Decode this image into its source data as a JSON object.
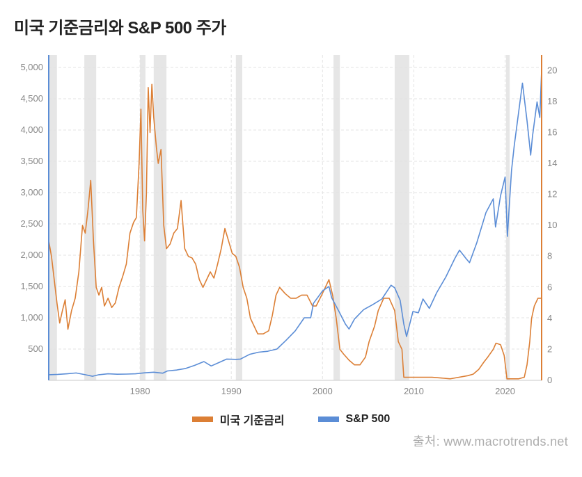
{
  "title": "미국 기준금리와 S&P 500 주가",
  "legend": {
    "series_a": {
      "label": "미국 기준금리",
      "color": "#dc7f35"
    },
    "series_b": {
      "label": "S&P 500",
      "color": "#5b8dd6"
    }
  },
  "source": "출처: www.macrotrends.net",
  "chart": {
    "type": "dual-axis-line",
    "background_color": "#ffffff",
    "plot_border_color": "#5b8dd6",
    "plot_border_right_color": "#dc7f35",
    "grid_color": "#e3e3e3",
    "grid_dash": "4 3",
    "band_color": "#e6e6e6",
    "line_width": 1.6,
    "x": {
      "min": 1970,
      "max": 2024,
      "ticks": [
        1980,
        1990,
        2000,
        2010,
        2020
      ],
      "fontsize": 13,
      "color": "#888888"
    },
    "y_left": {
      "min": 0,
      "max": 5200,
      "ticks": [
        500,
        1000,
        1500,
        2000,
        2500,
        3000,
        3500,
        4000,
        4500,
        5000
      ],
      "fontsize": 13,
      "color": "#888888"
    },
    "y_right": {
      "min": 0,
      "max": 21,
      "ticks": [
        0,
        2,
        4,
        6,
        8,
        10,
        12,
        14,
        16,
        18,
        20
      ],
      "fontsize": 13,
      "color": "#888888"
    },
    "recession_bands": [
      [
        1970.0,
        1970.9
      ],
      [
        1973.9,
        1975.2
      ],
      [
        1980.0,
        1980.6
      ],
      [
        1981.5,
        1982.9
      ],
      [
        1990.5,
        1991.2
      ],
      [
        2001.2,
        2001.9
      ],
      [
        2007.9,
        2009.5
      ],
      [
        2020.1,
        2020.5
      ]
    ],
    "series": [
      {
        "name": "fed_rate",
        "color": "#dc7f35",
        "axis": "right",
        "points": [
          [
            1970.0,
            9.0
          ],
          [
            1970.3,
            8.0
          ],
          [
            1970.6,
            6.5
          ],
          [
            1970.9,
            5.0
          ],
          [
            1971.2,
            3.7
          ],
          [
            1971.5,
            4.5
          ],
          [
            1971.8,
            5.2
          ],
          [
            1972.1,
            3.3
          ],
          [
            1972.5,
            4.5
          ],
          [
            1972.9,
            5.3
          ],
          [
            1973.3,
            7.0
          ],
          [
            1973.7,
            10.0
          ],
          [
            1974.0,
            9.5
          ],
          [
            1974.3,
            11.0
          ],
          [
            1974.6,
            12.9
          ],
          [
            1974.9,
            9.0
          ],
          [
            1975.2,
            6.0
          ],
          [
            1975.5,
            5.5
          ],
          [
            1975.8,
            6.0
          ],
          [
            1976.1,
            4.8
          ],
          [
            1976.5,
            5.3
          ],
          [
            1976.9,
            4.7
          ],
          [
            1977.3,
            5.0
          ],
          [
            1977.7,
            6.0
          ],
          [
            1978.1,
            6.7
          ],
          [
            1978.5,
            7.5
          ],
          [
            1978.9,
            9.5
          ],
          [
            1979.3,
            10.2
          ],
          [
            1979.6,
            10.5
          ],
          [
            1979.9,
            14.0
          ],
          [
            1980.1,
            17.5
          ],
          [
            1980.3,
            11.0
          ],
          [
            1980.5,
            9.0
          ],
          [
            1980.7,
            12.0
          ],
          [
            1980.9,
            18.9
          ],
          [
            1981.1,
            16.0
          ],
          [
            1981.3,
            19.1
          ],
          [
            1981.5,
            17.0
          ],
          [
            1981.8,
            15.0
          ],
          [
            1982.0,
            14.0
          ],
          [
            1982.3,
            14.9
          ],
          [
            1982.6,
            10.0
          ],
          [
            1982.9,
            8.5
          ],
          [
            1983.3,
            8.8
          ],
          [
            1983.7,
            9.5
          ],
          [
            1984.1,
            9.8
          ],
          [
            1984.5,
            11.6
          ],
          [
            1984.9,
            8.5
          ],
          [
            1985.3,
            8.0
          ],
          [
            1985.7,
            7.9
          ],
          [
            1986.1,
            7.5
          ],
          [
            1986.5,
            6.5
          ],
          [
            1986.9,
            6.0
          ],
          [
            1987.3,
            6.5
          ],
          [
            1987.7,
            7.0
          ],
          [
            1988.1,
            6.6
          ],
          [
            1988.5,
            7.5
          ],
          [
            1988.9,
            8.5
          ],
          [
            1989.3,
            9.8
          ],
          [
            1989.7,
            9.0
          ],
          [
            1990.1,
            8.2
          ],
          [
            1990.5,
            8.0
          ],
          [
            1990.9,
            7.3
          ],
          [
            1991.3,
            6.0
          ],
          [
            1991.7,
            5.3
          ],
          [
            1992.1,
            4.0
          ],
          [
            1992.5,
            3.5
          ],
          [
            1992.9,
            3.0
          ],
          [
            1993.5,
            3.0
          ],
          [
            1994.1,
            3.2
          ],
          [
            1994.5,
            4.2
          ],
          [
            1994.9,
            5.5
          ],
          [
            1995.3,
            6.0
          ],
          [
            1995.9,
            5.6
          ],
          [
            1996.5,
            5.3
          ],
          [
            1997.1,
            5.3
          ],
          [
            1997.7,
            5.5
          ],
          [
            1998.3,
            5.5
          ],
          [
            1998.9,
            4.8
          ],
          [
            1999.3,
            4.8
          ],
          [
            1999.9,
            5.5
          ],
          [
            2000.3,
            6.0
          ],
          [
            2000.7,
            6.5
          ],
          [
            2001.1,
            5.5
          ],
          [
            2001.5,
            4.0
          ],
          [
            2001.9,
            2.0
          ],
          [
            2002.3,
            1.7
          ],
          [
            2002.9,
            1.3
          ],
          [
            2003.5,
            1.0
          ],
          [
            2004.1,
            1.0
          ],
          [
            2004.7,
            1.5
          ],
          [
            2005.1,
            2.5
          ],
          [
            2005.7,
            3.5
          ],
          [
            2006.1,
            4.5
          ],
          [
            2006.7,
            5.3
          ],
          [
            2007.3,
            5.3
          ],
          [
            2007.9,
            4.5
          ],
          [
            2008.3,
            2.5
          ],
          [
            2008.7,
            2.0
          ],
          [
            2008.9,
            0.2
          ],
          [
            2009.5,
            0.2
          ],
          [
            2010.5,
            0.2
          ],
          [
            2012.0,
            0.2
          ],
          [
            2014.0,
            0.1
          ],
          [
            2015.9,
            0.3
          ],
          [
            2016.5,
            0.4
          ],
          [
            2017.1,
            0.7
          ],
          [
            2017.7,
            1.2
          ],
          [
            2018.1,
            1.5
          ],
          [
            2018.7,
            2.0
          ],
          [
            2019.0,
            2.4
          ],
          [
            2019.5,
            2.3
          ],
          [
            2019.9,
            1.6
          ],
          [
            2020.2,
            0.1
          ],
          [
            2020.9,
            0.1
          ],
          [
            2021.5,
            0.1
          ],
          [
            2022.1,
            0.2
          ],
          [
            2022.4,
            1.0
          ],
          [
            2022.7,
            2.5
          ],
          [
            2022.9,
            4.0
          ],
          [
            2023.2,
            4.8
          ],
          [
            2023.6,
            5.3
          ],
          [
            2024.0,
            5.3
          ]
        ]
      },
      {
        "name": "sp500",
        "color": "#5b8dd6",
        "axis": "left",
        "points": [
          [
            1970.0,
            90
          ],
          [
            1971.0,
            95
          ],
          [
            1972.0,
            105
          ],
          [
            1973.0,
            118
          ],
          [
            1974.0,
            90
          ],
          [
            1974.8,
            65
          ],
          [
            1975.5,
            90
          ],
          [
            1976.5,
            105
          ],
          [
            1977.5,
            98
          ],
          [
            1978.5,
            100
          ],
          [
            1979.5,
            105
          ],
          [
            1980.5,
            120
          ],
          [
            1981.5,
            130
          ],
          [
            1982.5,
            115
          ],
          [
            1983.0,
            150
          ],
          [
            1984.0,
            165
          ],
          [
            1985.0,
            190
          ],
          [
            1986.0,
            240
          ],
          [
            1987.0,
            300
          ],
          [
            1987.8,
            230
          ],
          [
            1988.5,
            275
          ],
          [
            1989.5,
            340
          ],
          [
            1990.5,
            335
          ],
          [
            1991.0,
            340
          ],
          [
            1992.0,
            415
          ],
          [
            1993.0,
            450
          ],
          [
            1994.0,
            465
          ],
          [
            1995.0,
            500
          ],
          [
            1996.0,
            640
          ],
          [
            1997.0,
            790
          ],
          [
            1998.0,
            1000
          ],
          [
            1998.7,
            1000
          ],
          [
            1999.0,
            1230
          ],
          [
            2000.0,
            1430
          ],
          [
            2000.7,
            1500
          ],
          [
            2001.0,
            1320
          ],
          [
            2001.8,
            1100
          ],
          [
            2002.5,
            900
          ],
          [
            2002.9,
            820
          ],
          [
            2003.5,
            980
          ],
          [
            2004.5,
            1130
          ],
          [
            2005.5,
            1210
          ],
          [
            2006.5,
            1300
          ],
          [
            2007.5,
            1520
          ],
          [
            2007.9,
            1480
          ],
          [
            2008.5,
            1280
          ],
          [
            2008.9,
            900
          ],
          [
            2009.2,
            700
          ],
          [
            2009.9,
            1100
          ],
          [
            2010.5,
            1080
          ],
          [
            2011.0,
            1300
          ],
          [
            2011.7,
            1150
          ],
          [
            2012.5,
            1400
          ],
          [
            2013.5,
            1650
          ],
          [
            2014.5,
            1950
          ],
          [
            2015.0,
            2080
          ],
          [
            2015.7,
            1950
          ],
          [
            2016.1,
            1880
          ],
          [
            2016.9,
            2200
          ],
          [
            2017.9,
            2680
          ],
          [
            2018.7,
            2900
          ],
          [
            2018.95,
            2450
          ],
          [
            2019.5,
            2950
          ],
          [
            2020.0,
            3250
          ],
          [
            2020.25,
            2300
          ],
          [
            2020.7,
            3350
          ],
          [
            2021.0,
            3750
          ],
          [
            2021.9,
            4750
          ],
          [
            2022.4,
            4150
          ],
          [
            2022.8,
            3600
          ],
          [
            2023.0,
            3900
          ],
          [
            2023.5,
            4450
          ],
          [
            2023.8,
            4200
          ],
          [
            2024.0,
            4950
          ]
        ]
      }
    ]
  }
}
